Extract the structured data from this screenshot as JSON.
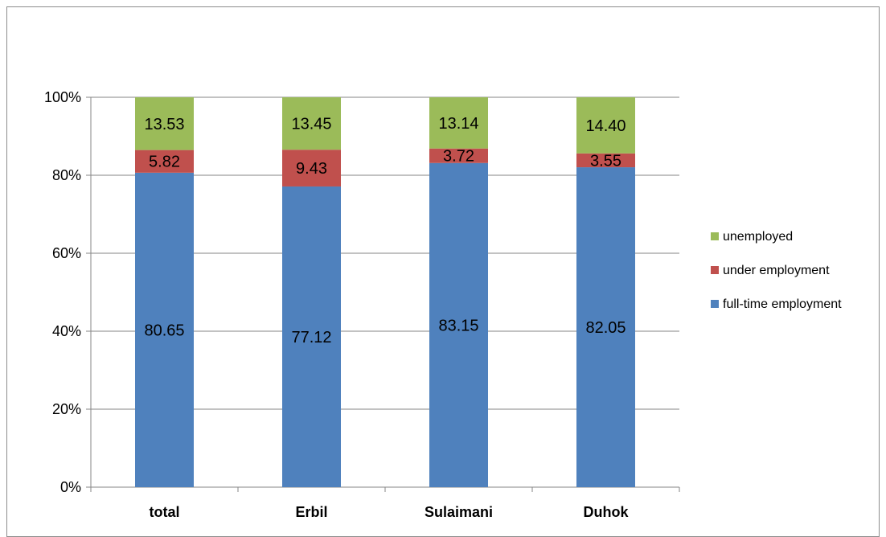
{
  "chart_data": {
    "type": "bar",
    "stacked": "percent",
    "categories": [
      "total",
      "Erbil",
      "Sulaimani",
      "Duhok"
    ],
    "series": [
      {
        "name": "full-time employment",
        "values": [
          80.65,
          77.12,
          83.15,
          82.05
        ],
        "labels": [
          "80.65",
          "77.12",
          "83.15",
          "82.05"
        ],
        "color": "#4f81bd"
      },
      {
        "name": "under employment",
        "values": [
          5.82,
          9.43,
          3.72,
          3.55
        ],
        "labels": [
          "5.82",
          "9.43",
          "3.72",
          "3.55"
        ],
        "color": "#c0504d"
      },
      {
        "name": "unemployed",
        "values": [
          13.53,
          13.45,
          13.14,
          14.4
        ],
        "labels": [
          "13.53",
          "13.45",
          "13.14",
          "14.40"
        ],
        "color": "#9bbb59"
      }
    ],
    "yticks": [
      "0%",
      "20%",
      "40%",
      "60%",
      "80%",
      "100%"
    ],
    "ylim": [
      0,
      100
    ],
    "grid": true,
    "legend": "right",
    "legend_order": [
      "unemployed",
      "under employment",
      "full-time employment"
    ]
  }
}
